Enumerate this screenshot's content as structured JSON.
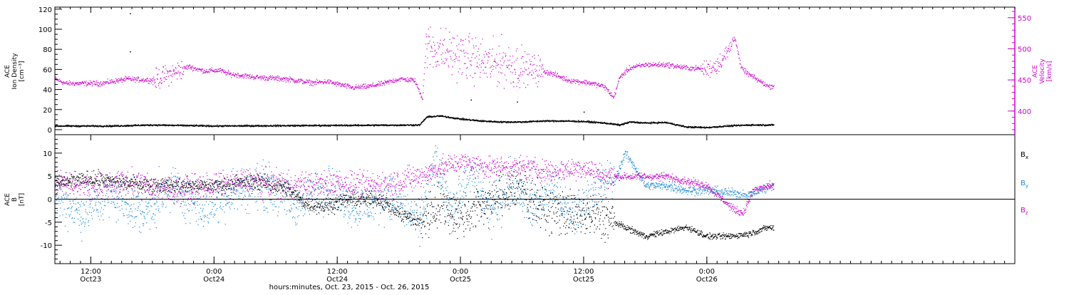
{
  "chart_data": [
    {
      "type": "scatter",
      "panel": "top",
      "title": "",
      "ylabel_left": [
        "ACE",
        "Ion Density",
        "[cm⁻³]"
      ],
      "ylabel_right": [
        "ACE",
        "Velocity",
        "[km/s]"
      ],
      "ylim_left": [
        -5,
        122
      ],
      "ylim_right": [
        362,
        567
      ],
      "yticks_left": [
        0,
        20,
        40,
        60,
        80,
        100,
        120
      ],
      "yticks_right": [
        400,
        450,
        500,
        550
      ],
      "x_range_hours": [
        -15.5,
        78
      ],
      "series": [
        {
          "key": "velocity",
          "axis": "right",
          "color": "#cc00cc",
          "anchors": [
            [
              -15.5,
              452
            ],
            [
              -14.5,
              445
            ],
            [
              -13,
              445
            ],
            [
              -11,
              445
            ],
            [
              -8.5,
              452
            ],
            [
              -6,
              450
            ],
            [
              -4,
              462
            ],
            [
              -2.5,
              472
            ],
            [
              -1,
              465
            ],
            [
              0.5,
              466
            ],
            [
              1.5,
              460
            ],
            [
              4,
              455
            ],
            [
              7,
              452
            ],
            [
              9.5,
              446
            ],
            [
              11,
              448
            ],
            [
              13.5,
              438
            ],
            [
              15,
              440
            ],
            [
              16.5,
              445
            ],
            [
              18,
              452
            ],
            [
              19.5,
              450
            ],
            [
              20.3,
              420
            ],
            [
              20.6,
              505
            ],
            [
              21.5,
              500
            ],
            [
              22.5,
              495
            ],
            [
              24,
              490
            ],
            [
              26,
              480
            ],
            [
              27,
              475
            ],
            [
              28,
              480
            ],
            [
              30,
              470
            ],
            [
              32,
              465
            ],
            [
              33,
              460
            ],
            [
              34.5,
              450
            ],
            [
              36.5,
              446
            ],
            [
              38,
              440
            ],
            [
              38.9,
              422
            ],
            [
              39.5,
              455
            ],
            [
              40.5,
              470
            ],
            [
              42,
              475
            ],
            [
              44,
              475
            ],
            [
              46,
              470
            ],
            [
              48,
              468
            ],
            [
              49,
              475
            ],
            [
              50,
              495
            ],
            [
              50.7,
              520
            ],
            [
              51.3,
              470
            ],
            [
              52,
              460
            ],
            [
              53,
              450
            ],
            [
              54,
              440
            ],
            [
              54.5,
              441
            ]
          ],
          "scatter_spread": [
            [
              [
                20.5,
                30
              ],
              45
            ],
            [
              [
                30,
                32
              ],
              30
            ],
            [
              [
                47.5,
                50.5
              ],
              18
            ],
            [
              [
                -6,
                -3
              ],
              20
            ]
          ]
        },
        {
          "key": "density",
          "axis": "left",
          "color": "#000000",
          "anchors": [
            [
              -15.5,
              4
            ],
            [
              -10,
              4
            ],
            [
              -6,
              5
            ],
            [
              0,
              4
            ],
            [
              10,
              4.5
            ],
            [
              20,
              5
            ],
            [
              20.7,
              13
            ],
            [
              22,
              14
            ],
            [
              24,
              11
            ],
            [
              26,
              9
            ],
            [
              28,
              8
            ],
            [
              30,
              8
            ],
            [
              32,
              9
            ],
            [
              34,
              9
            ],
            [
              36,
              8.5
            ],
            [
              38,
              7
            ],
            [
              39.5,
              5
            ],
            [
              40.5,
              8
            ],
            [
              42,
              7
            ],
            [
              44,
              7.5
            ],
            [
              46,
              3
            ],
            [
              48,
              2.5
            ],
            [
              50,
              4
            ],
            [
              52,
              5
            ],
            [
              54.5,
              5
            ]
          ],
          "outliers": [
            [
              -8.2,
              116
            ],
            [
              -8.2,
              78
            ],
            [
              36,
              18
            ],
            [
              25,
              30
            ],
            [
              29.5,
              28
            ]
          ]
        }
      ]
    },
    {
      "type": "scatter",
      "panel": "bottom",
      "title": "",
      "ylabel": [
        "ACE",
        "B",
        "[nT]"
      ],
      "ylim": [
        -14,
        14
      ],
      "yticks": [
        -10,
        -5,
        0,
        5,
        10
      ],
      "reference_line": 0,
      "x_range_hours": [
        -15.5,
        78
      ],
      "legend": [
        {
          "text": "Bx",
          "base": "B",
          "sub": "x",
          "color": "#000000"
        },
        {
          "text": "By",
          "base": "B",
          "sub": "y",
          "color": "#1a88d8"
        },
        {
          "text": "Bz",
          "base": "B",
          "sub": "z",
          "color": "#cc00cc"
        }
      ],
      "series": [
        {
          "key": "Bx",
          "color": "#000000",
          "anchors": [
            [
              -15.5,
              3.5
            ],
            [
              -12,
              4.5
            ],
            [
              -8,
              3.5
            ],
            [
              -4,
              3
            ],
            [
              0,
              3
            ],
            [
              4,
              4
            ],
            [
              7,
              2.5
            ],
            [
              9,
              -1
            ],
            [
              11,
              -1.5
            ],
            [
              13,
              0
            ],
            [
              16,
              0
            ],
            [
              18,
              -3
            ],
            [
              20,
              -5
            ],
            [
              22,
              -1
            ],
            [
              24,
              -4
            ],
            [
              27,
              0
            ],
            [
              30,
              3
            ],
            [
              32,
              -2
            ],
            [
              34,
              -3
            ],
            [
              36,
              -3.5
            ],
            [
              38,
              -4
            ],
            [
              40,
              -6
            ],
            [
              42,
              -8
            ],
            [
              44,
              -7
            ],
            [
              46,
              -6
            ],
            [
              48,
              -8
            ],
            [
              50,
              -8
            ],
            [
              52,
              -7.5
            ],
            [
              54,
              -6
            ],
            [
              54.5,
              -6.3
            ]
          ],
          "scatter_spread": [
            [
              [
                20,
                39
              ],
              6
            ],
            [
              [
                -15.5,
                20
              ],
              2
            ]
          ]
        },
        {
          "key": "By",
          "color": "#1a88d8",
          "anchors": [
            [
              -15.5,
              1
            ],
            [
              -13,
              -3
            ],
            [
              -10,
              1
            ],
            [
              -7,
              -3
            ],
            [
              -4,
              3
            ],
            [
              -1,
              -2
            ],
            [
              2,
              2
            ],
            [
              5,
              3
            ],
            [
              8,
              -1
            ],
            [
              11,
              3
            ],
            [
              14,
              -2
            ],
            [
              17,
              1
            ],
            [
              20,
              -5
            ],
            [
              21.5,
              8
            ],
            [
              23,
              -2
            ],
            [
              25,
              5
            ],
            [
              27,
              -3
            ],
            [
              29,
              4
            ],
            [
              31,
              -2
            ],
            [
              33,
              3
            ],
            [
              35,
              -4
            ],
            [
              37,
              2
            ],
            [
              39,
              4
            ],
            [
              40,
              10
            ],
            [
              41,
              7
            ],
            [
              42,
              3
            ],
            [
              44,
              3
            ],
            [
              46,
              2
            ],
            [
              48,
              2
            ],
            [
              50,
              1.5
            ],
            [
              52,
              1
            ],
            [
              54.5,
              3
            ]
          ],
          "scatter_spread": [
            [
              [
                -15.5,
                39
              ],
              6
            ]
          ]
        },
        {
          "key": "Bz",
          "color": "#cc00cc",
          "anchors": [
            [
              -15.5,
              4
            ],
            [
              -12,
              3
            ],
            [
              -8,
              3.5
            ],
            [
              -4,
              2
            ],
            [
              0,
              3
            ],
            [
              4,
              4
            ],
            [
              8,
              3
            ],
            [
              12,
              3.5
            ],
            [
              16,
              3
            ],
            [
              20,
              5
            ],
            [
              22,
              7
            ],
            [
              24,
              8
            ],
            [
              27,
              7
            ],
            [
              30,
              7
            ],
            [
              33,
              6
            ],
            [
              36,
              7
            ],
            [
              38,
              5
            ],
            [
              40,
              5
            ],
            [
              42,
              5
            ],
            [
              44,
              5
            ],
            [
              46,
              4
            ],
            [
              48,
              3
            ],
            [
              49.5,
              0
            ],
            [
              50.5,
              -2
            ],
            [
              51.5,
              -3
            ],
            [
              52.5,
              2
            ],
            [
              54,
              3
            ],
            [
              54.5,
              2.5
            ]
          ],
          "scatter_spread": [
            [
              [
                -15.5,
                20
              ],
              3.5
            ],
            [
              [
                20,
                39
              ],
              3
            ]
          ]
        }
      ]
    }
  ],
  "x_axis": {
    "title": "hours:minutes, Oct. 23, 2015 - Oct. 26, 2015",
    "ticks": [
      {
        "hours": -12,
        "time": "12:00",
        "date": "Oct23"
      },
      {
        "hours": 0,
        "time": "0:00",
        "date": "Oct24"
      },
      {
        "hours": 12,
        "time": "12:00",
        "date": "Oct24"
      },
      {
        "hours": 24,
        "time": "0:00",
        "date": "Oct25"
      },
      {
        "hours": 36,
        "time": "12:00",
        "date": "Oct25"
      },
      {
        "hours": 48,
        "time": "0:00",
        "date": "Oct26"
      }
    ],
    "minor_tick_step_hours": 1
  }
}
